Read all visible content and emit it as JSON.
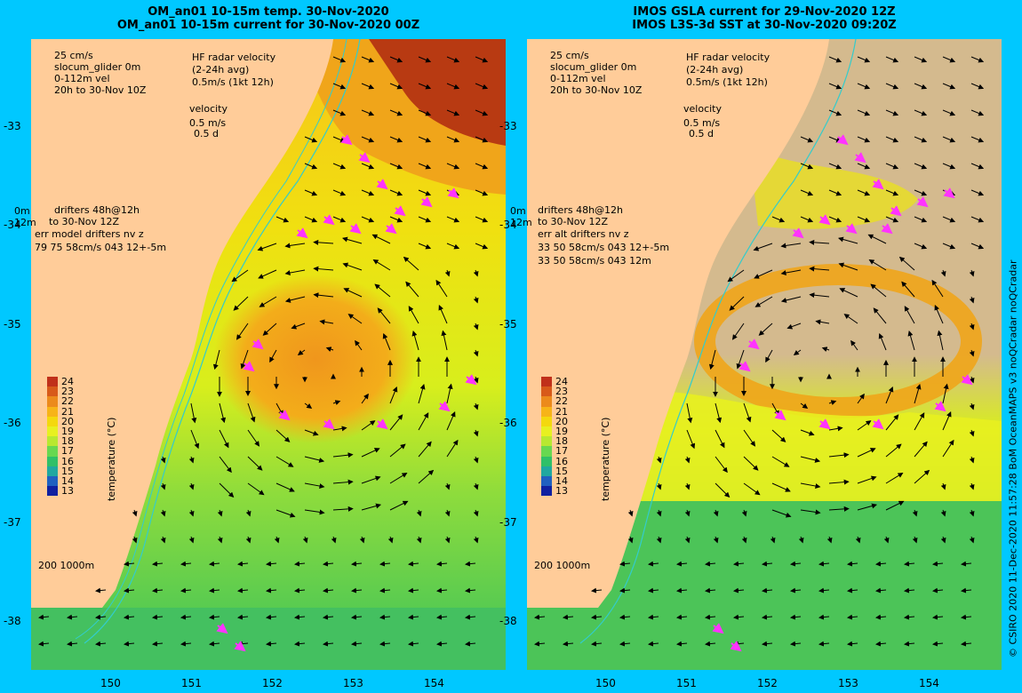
{
  "left_panel": {
    "title_line1": "OM_an01 10-15m temp. 30-Nov-2020",
    "title_line2": "OM_an01 10-15m current for 30-Nov-2020 00Z",
    "legend_scale": "25 cm/s",
    "legend_glider": "slocum_glider 0m",
    "legend_vel": "0-112m vel",
    "legend_time": "20h to 30-Nov 10Z",
    "hf_line1": "HF radar velocity",
    "hf_line2": "(2-24h avg)",
    "hf_line3": "0.5m/s (1kt 12h)",
    "vel_line1": "velocity",
    "vel_line2": "0.5 m/s",
    "vel_line3": "0.5 d",
    "drift_0m": "0m",
    "drift_12m": "12m",
    "drift_line1": "drifters 48h@12h",
    "drift_line2": "to 30-Nov 12Z",
    "drift_line3": "err model drifters nv z",
    "drift_line4": "79 75 58cm/s 043 12+-5m",
    "isobath": "200  1000m"
  },
  "right_panel": {
    "title_line1": "IMOS GSLA current for 29-Nov-2020 12Z",
    "title_line2": "IMOS L3S-3d SST at 30-Nov-2020 09:20Z",
    "legend_scale": "25 cm/s",
    "legend_glider": "slocum_glider 0m",
    "legend_vel": "0-112m vel",
    "legend_time": "20h to 30-Nov 10Z",
    "hf_line1": "HF radar velocity",
    "hf_line2": "(2-24h avg)",
    "hf_line3": "0.5m/s (1kt 12h)",
    "vel_line1": "velocity",
    "vel_line2": "0.5 m/s",
    "vel_line3": "0.5 d",
    "drift_0m": "0m",
    "drift_12m": "12m",
    "drift_line1": "drifters 48h@12h",
    "drift_line2": "to 30-Nov 12Z",
    "drift_line3": "err alt drifters nv z",
    "drift_line4": "33 50 58cm/s 043 12+-5m",
    "drift_line5": "33 50 58cm/s 043 12m",
    "isobath": "200  1000m"
  },
  "latitudes": [
    "-33",
    "-34",
    "-35",
    "-36",
    "-37",
    "-38"
  ],
  "longitudes": [
    "150",
    "151",
    "152",
    "153",
    "154"
  ],
  "colorbar": {
    "label": "temperature (°C)",
    "ticks": [
      "24",
      "23",
      "22",
      "21",
      "20",
      "19",
      "18",
      "17",
      "16",
      "15",
      "14",
      "13"
    ],
    "colors": [
      "#c0301a",
      "#d85a1a",
      "#ec8a1c",
      "#f7b418",
      "#f4d80e",
      "#e8f020",
      "#b8e830",
      "#68d850",
      "#30c068",
      "#20a8a0",
      "#2060c0",
      "#1020a0",
      "#000080"
    ]
  },
  "credit": "© CSIRO 2020  11-Dec-2020 11:57:28 BoM OceanMAPS v3 noQCradar noQCradar",
  "colors": {
    "land": "#ffcc99",
    "background": "#00c8ff",
    "drifter": "#ff33ff",
    "isobath": "#33cccc"
  }
}
